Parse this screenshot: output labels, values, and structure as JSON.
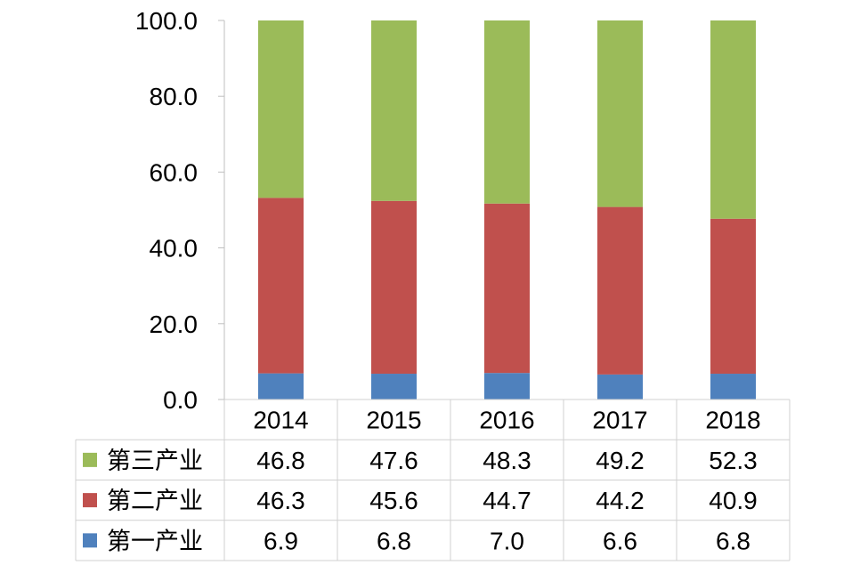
{
  "chart_data": {
    "type": "bar",
    "stacked": true,
    "categories": [
      "2014",
      "2015",
      "2016",
      "2017",
      "2018"
    ],
    "series": [
      {
        "name": "第一产业",
        "color": "#4f81bd",
        "values": [
          6.9,
          6.8,
          7.0,
          6.6,
          6.8
        ]
      },
      {
        "name": "第二产业",
        "color": "#c0504d",
        "values": [
          46.3,
          45.6,
          44.7,
          44.2,
          40.9
        ]
      },
      {
        "name": "第三产业",
        "color": "#9bbb59",
        "values": [
          46.8,
          47.6,
          48.3,
          49.2,
          52.3
        ]
      }
    ],
    "y_ticks": [
      "0.0",
      "20.0",
      "40.0",
      "60.0",
      "80.0",
      "100.0"
    ],
    "ylim": [
      0,
      100
    ],
    "grid": false,
    "legend": "data-table-left",
    "data_table": {
      "row_order": [
        "第三产业",
        "第二产业",
        "第一产业"
      ],
      "rows": [
        [
          "46.8",
          "47.6",
          "48.3",
          "49.2",
          "52.3"
        ],
        [
          "46.3",
          "45.6",
          "44.7",
          "44.2",
          "40.9"
        ],
        [
          "6.9",
          "6.8",
          "7.0",
          "6.6",
          "6.8"
        ]
      ]
    }
  }
}
